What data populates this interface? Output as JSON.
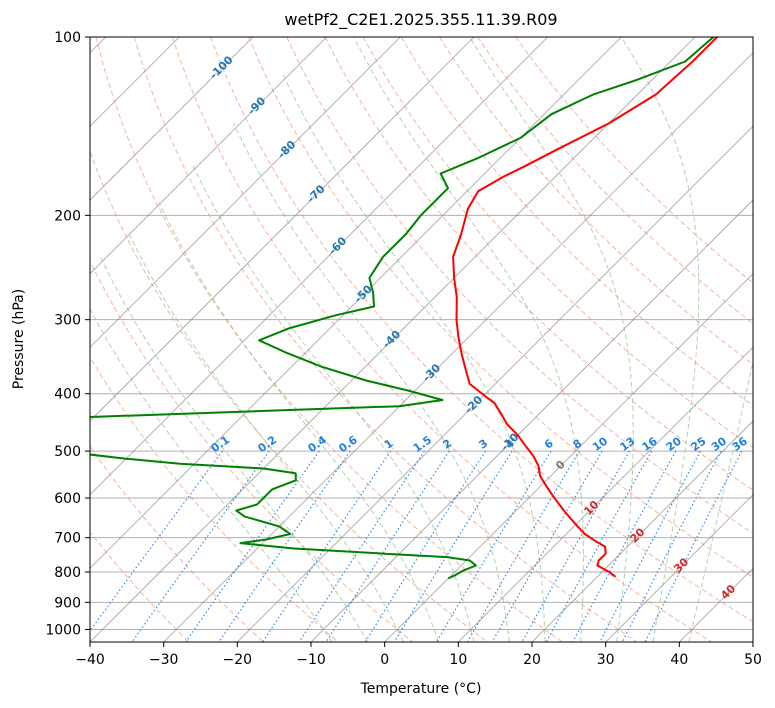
{
  "chart_data": {
    "type": "line",
    "title": "wetPf2_C2E1.2025.355.11.39.R09",
    "xlabel": "Temperature (°C)",
    "ylabel": "Pressure (hPa)",
    "xlim": [
      -40,
      50
    ],
    "ylim": [
      1050,
      100
    ],
    "y_scale": "log",
    "x_ticks": [
      -40,
      -30,
      -20,
      -10,
      0,
      10,
      20,
      30,
      40,
      50
    ],
    "y_ticks": [
      100,
      200,
      300,
      400,
      500,
      600,
      700,
      800,
      900,
      1000
    ],
    "grid": true,
    "series": [
      {
        "role": "temperature",
        "color": "#ff0000",
        "points": [
          [
            -37.0,
            100
          ],
          [
            -37.0,
            110
          ],
          [
            -37.5,
            125
          ],
          [
            -40.0,
            140
          ],
          [
            -43.5,
            155
          ],
          [
            -45.5,
            165
          ],
          [
            -47.0,
            172
          ],
          [
            -48.5,
            182
          ],
          [
            -47.5,
            195
          ],
          [
            -45.0,
            215
          ],
          [
            -43.0,
            235
          ],
          [
            -40.0,
            255
          ],
          [
            -37.0,
            275
          ],
          [
            -34.0,
            300
          ],
          [
            -31.5,
            320
          ],
          [
            -29.0,
            340
          ],
          [
            -26.5,
            360
          ],
          [
            -23.5,
            385
          ],
          [
            -19.5,
            405
          ],
          [
            -17.5,
            415
          ],
          [
            -15.5,
            430
          ],
          [
            -13.0,
            450
          ],
          [
            -10.0,
            470
          ],
          [
            -7.5,
            490
          ],
          [
            -5.0,
            510
          ],
          [
            -3.0,
            530
          ],
          [
            -1.5,
            550
          ],
          [
            0.5,
            570
          ],
          [
            2.5,
            590
          ],
          [
            4.5,
            610
          ],
          [
            6.5,
            630
          ],
          [
            8.5,
            650
          ],
          [
            10.5,
            670
          ],
          [
            12.5,
            690
          ],
          [
            15.0,
            710
          ],
          [
            17.0,
            725
          ],
          [
            18.0,
            745
          ],
          [
            18.0,
            765
          ],
          [
            18.5,
            780
          ],
          [
            21.0,
            800
          ],
          [
            22.5,
            815
          ]
        ]
      },
      {
        "role": "dewpoint",
        "color": "#008000",
        "points": [
          [
            -37.5,
            100
          ],
          [
            -38.0,
            110
          ],
          [
            -42.0,
            118
          ],
          [
            -46.0,
            125
          ],
          [
            -49.0,
            135
          ],
          [
            -50.0,
            148
          ],
          [
            -53.0,
            160
          ],
          [
            -56.0,
            170
          ],
          [
            -53.0,
            180
          ],
          [
            -53.0,
            190
          ],
          [
            -53.0,
            200
          ],
          [
            -52.5,
            215
          ],
          [
            -52.5,
            235
          ],
          [
            -51.5,
            255
          ],
          [
            -49.0,
            270
          ],
          [
            -47.0,
            285
          ],
          [
            -51.0,
            295
          ],
          [
            -55.5,
            310
          ],
          [
            -58.0,
            325
          ],
          [
            -53.0,
            340
          ],
          [
            -46.0,
            360
          ],
          [
            -38.0,
            380
          ],
          [
            -31.0,
            395
          ],
          [
            -25.0,
            410
          ],
          [
            -30.0,
            420
          ],
          [
            -75.0,
            440
          ],
          [
            -80.0,
            448
          ],
          [
            -78.0,
            455
          ],
          [
            -75.0,
            465
          ],
          [
            -73.0,
            480
          ],
          [
            -70.0,
            500
          ],
          [
            -60.0,
            515
          ],
          [
            -52.0,
            525
          ],
          [
            -40.0,
            535
          ],
          [
            -35.0,
            545
          ],
          [
            -34.0,
            560
          ],
          [
            -36.0,
            580
          ],
          [
            -36.0,
            600
          ],
          [
            -36.0,
            615
          ],
          [
            -38.0,
            630
          ],
          [
            -36.0,
            645
          ],
          [
            -30.0,
            670
          ],
          [
            -27.5,
            690
          ],
          [
            -30.0,
            705
          ],
          [
            -33.0,
            715
          ],
          [
            -25.0,
            730
          ],
          [
            -12.0,
            745
          ],
          [
            -3.0,
            755
          ],
          [
            0.5,
            765
          ],
          [
            2.0,
            780
          ],
          [
            1.0,
            795
          ],
          [
            0.5,
            810
          ],
          [
            0.0,
            820
          ]
        ]
      }
    ],
    "dry_adiabats": [
      -30,
      -20,
      -10,
      0,
      10,
      20,
      30,
      40,
      50,
      60,
      70,
      80,
      90,
      100,
      110,
      120,
      130
    ],
    "moist_adiabats": [
      -10,
      -5,
      0,
      5,
      10,
      15,
      20,
      25,
      30,
      35,
      40
    ],
    "mixing_ratio_lines": [
      0.1,
      0.2,
      0.4,
      0.6,
      1,
      1.5,
      2,
      3,
      4,
      6,
      8,
      10,
      13,
      16,
      20,
      25,
      30,
      36
    ],
    "mixing_ratio_labels": [
      "0.1",
      "0.2",
      "0.4",
      "0.6",
      "1",
      "1.5",
      "2",
      "3",
      "4",
      "6",
      "8",
      "10",
      "13",
      "16",
      "20",
      "25",
      "30",
      "36"
    ],
    "isotherm_labels": [
      {
        "text": "-100",
        "temp": -100,
        "p": 112
      },
      {
        "text": "-90",
        "temp": -90,
        "p": 130
      },
      {
        "text": "-80",
        "temp": -80,
        "p": 154
      },
      {
        "text": "-70",
        "temp": -70,
        "p": 183
      },
      {
        "text": "-60",
        "temp": -60,
        "p": 224
      },
      {
        "text": "-50",
        "temp": -50,
        "p": 270
      },
      {
        "text": "-40",
        "temp": -40,
        "p": 322
      },
      {
        "text": "-30",
        "temp": -30,
        "p": 367
      },
      {
        "text": "-20",
        "temp": -20,
        "p": 415
      },
      {
        "text": "-10",
        "temp": -10,
        "p": 480
      },
      {
        "text": "0",
        "temp": 0,
        "p": 525
      },
      {
        "text": "10",
        "temp": 10,
        "p": 620
      },
      {
        "text": "20",
        "temp": 20,
        "p": 690
      },
      {
        "text": "30",
        "temp": 30,
        "p": 775
      },
      {
        "text": "40",
        "temp": 40,
        "p": 860
      }
    ],
    "colors": {
      "grid": "#b0b0b0",
      "isotherm": "#777777",
      "dry_adiabat": "#f08060",
      "moist_adiabat": "#8cc08c",
      "mixing_ratio": "#1e80e0",
      "isotherm_label_cold": "#1f77b4",
      "isotherm_label_warm": "#d62728",
      "isotherm_label_zero": "#777777"
    }
  }
}
